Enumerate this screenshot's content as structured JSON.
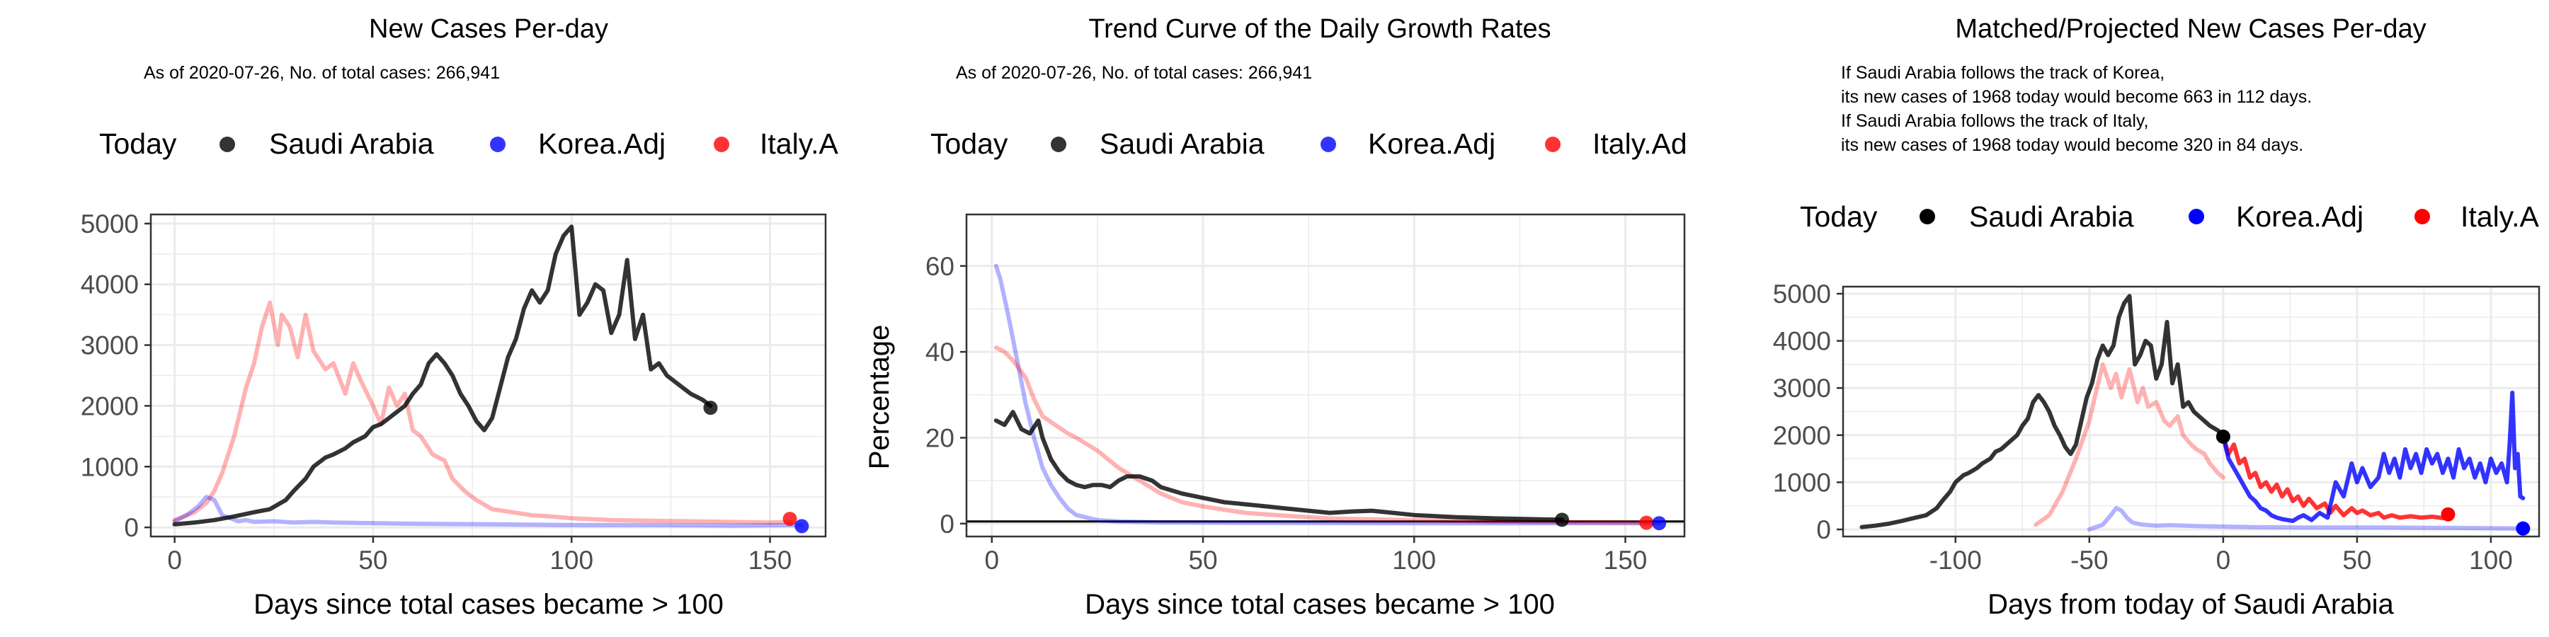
{
  "colors": {
    "saudi": "#000000",
    "korea": "#0000ff",
    "italy": "#ff0000",
    "grid": "#ebebeb",
    "axis": "#333333"
  },
  "chart_data": [
    {
      "type": "line",
      "title": "New Cases Per-day",
      "subtitle": "As of 2020-07-26, No. of total cases: 266,941",
      "legend": {
        "position": "top",
        "today_label": "Today",
        "entries": [
          "Saudi Arabia",
          "Korea.Adj",
          "Italy.A"
        ]
      },
      "xlabel": "Days since total cases became > 100",
      "ylabel": "",
      "xlim": [
        -6,
        164
      ],
      "ylim": [
        -150,
        5150
      ],
      "xticks": [
        0,
        50,
        100,
        150
      ],
      "yticks": [
        0,
        1000,
        2000,
        3000,
        4000,
        5000
      ],
      "grid": true,
      "series": [
        {
          "name": "Italy.A",
          "color": "#ff0000",
          "opacity": 0.3,
          "x": [
            0,
            5,
            8,
            10,
            12,
            15,
            18,
            20,
            22,
            24,
            26,
            27,
            29,
            31,
            33,
            35,
            38,
            40,
            43,
            45,
            47,
            50,
            52,
            54,
            56,
            58,
            60,
            62,
            65,
            68,
            70,
            73,
            76,
            80,
            85,
            90,
            95,
            100,
            110,
            120,
            130,
            140,
            150,
            155
          ],
          "y": [
            120,
            250,
            400,
            600,
            900,
            1500,
            2300,
            2700,
            3300,
            3700,
            3000,
            3500,
            3300,
            2800,
            3500,
            2900,
            2600,
            2700,
            2200,
            2700,
            2400,
            2000,
            1700,
            2300,
            2000,
            2200,
            1600,
            1500,
            1200,
            1100,
            800,
            600,
            450,
            300,
            250,
            200,
            180,
            150,
            120,
            110,
            100,
            90,
            80,
            90
          ]
        },
        {
          "name": "Korea.Adj",
          "color": "#0000ff",
          "opacity": 0.3,
          "x": [
            0,
            3,
            6,
            8,
            10,
            12,
            14,
            16,
            18,
            20,
            25,
            30,
            35,
            40,
            50,
            60,
            80,
            100,
            120,
            140,
            158
          ],
          "y": [
            100,
            200,
            350,
            500,
            450,
            200,
            150,
            100,
            120,
            90,
            100,
            80,
            90,
            80,
            70,
            60,
            50,
            40,
            40,
            30,
            40
          ]
        },
        {
          "name": "Saudi Arabia",
          "color": "#000000",
          "opacity": 0.8,
          "x": [
            0,
            5,
            10,
            15,
            20,
            24,
            28,
            30,
            33,
            35,
            38,
            40,
            43,
            45,
            48,
            50,
            52,
            54,
            56,
            58,
            60,
            62,
            64,
            66,
            68,
            70,
            72,
            74,
            76,
            78,
            80,
            82,
            84,
            86,
            88,
            90,
            92,
            94,
            96,
            98,
            100,
            102,
            104,
            106,
            108,
            110,
            112,
            114,
            116,
            118,
            120,
            122,
            124,
            126,
            128,
            130,
            133,
            135
          ],
          "y": [
            50,
            80,
            120,
            180,
            250,
            300,
            450,
            600,
            800,
            1000,
            1150,
            1200,
            1300,
            1400,
            1500,
            1650,
            1700,
            1800,
            1900,
            2000,
            2200,
            2350,
            2700,
            2850,
            2700,
            2500,
            2200,
            2000,
            1750,
            1600,
            1800,
            2300,
            2800,
            3100,
            3600,
            3900,
            3700,
            3900,
            4500,
            4800,
            4950,
            3500,
            3700,
            4000,
            3900,
            3200,
            3500,
            4400,
            3100,
            3500,
            2600,
            2700,
            2500,
            2400,
            2300,
            2200,
            2100,
            2000
          ]
        }
      ],
      "today_points": [
        {
          "series": "Saudi Arabia",
          "x": 135,
          "y": 1968
        },
        {
          "series": "Italy.A",
          "x": 155,
          "y": 140
        },
        {
          "series": "Korea.Adj",
          "x": 158,
          "y": 20
        }
      ]
    },
    {
      "type": "line",
      "title": "Trend Curve of the Daily Growth Rates",
      "subtitle": "As of 2020-07-26, No. of total cases: 266,941",
      "legend": {
        "position": "top",
        "today_label": "Today",
        "entries": [
          "Saudi Arabia",
          "Korea.Adj",
          "Italy.Ad"
        ]
      },
      "xlabel": "Days since total cases became > 100",
      "ylabel": "Percentage",
      "xlim": [
        -6,
        164
      ],
      "ylim": [
        -3,
        72
      ],
      "xticks": [
        0,
        50,
        100,
        150
      ],
      "yticks": [
        0,
        20,
        40,
        60
      ],
      "grid": true,
      "hline": 0.5,
      "series": [
        {
          "name": "Korea.Adj",
          "color": "#0000ff",
          "opacity": 0.3,
          "x": [
            1,
            2,
            4,
            6,
            8,
            10,
            12,
            14,
            16,
            18,
            20,
            25,
            30,
            40,
            60,
            100,
            158
          ],
          "y": [
            60,
            57,
            48,
            38,
            28,
            20,
            13,
            9,
            6,
            3.5,
            2,
            0.8,
            0.5,
            0.3,
            0.2,
            0.1,
            0.1
          ]
        },
        {
          "name": "Italy.Ad",
          "color": "#ff0000",
          "opacity": 0.3,
          "x": [
            1,
            3,
            5,
            8,
            10,
            12,
            15,
            18,
            20,
            25,
            30,
            35,
            40,
            45,
            50,
            60,
            70,
            80,
            100,
            120,
            155
          ],
          "y": [
            41,
            40,
            38,
            34,
            29,
            25,
            23,
            21,
            20,
            17,
            13,
            10,
            7,
            5,
            4,
            2.5,
            1.8,
            1.2,
            0.8,
            0.5,
            0.2
          ]
        },
        {
          "name": "Saudi Arabia",
          "color": "#000000",
          "opacity": 0.8,
          "x": [
            1,
            3,
            5,
            7,
            9,
            11,
            12,
            14,
            16,
            18,
            20,
            22,
            24,
            26,
            28,
            30,
            32,
            35,
            38,
            40,
            45,
            50,
            55,
            60,
            65,
            70,
            75,
            80,
            85,
            90,
            95,
            100,
            110,
            120,
            130,
            135
          ],
          "y": [
            24,
            23,
            26,
            22,
            21,
            24,
            20,
            15,
            12,
            10,
            9,
            8.5,
            9,
            9,
            8.5,
            10,
            11,
            11,
            10,
            8.5,
            7,
            6,
            5,
            4.5,
            4,
            3.5,
            3,
            2.5,
            2.8,
            3,
            2.5,
            2,
            1.5,
            1.2,
            1,
            0.9
          ]
        }
      ],
      "today_points": [
        {
          "series": "Saudi Arabia",
          "x": 135,
          "y": 0.9
        },
        {
          "series": "Italy.Ad",
          "x": 155,
          "y": 0.2
        },
        {
          "series": "Korea.Adj",
          "x": 158,
          "y": 0.1
        }
      ]
    },
    {
      "type": "line",
      "title": "Matched/Projected New Cases Per-day",
      "annotations": [
        "If Saudi Arabia follows the track of Korea,",
        "its new cases of 1968 today would become 663 in 112 days.",
        "If Saudi Arabia follows the track of Italy,",
        "its new cases of 1968 today would become 320 in 84 days."
      ],
      "legend": {
        "position": "top",
        "today_label": "Today",
        "entries": [
          "Saudi Arabia",
          "Korea.Adj",
          "Italy.A"
        ]
      },
      "xlabel": "Days from today of Saudi Arabia",
      "ylabel": "",
      "xlim": [
        -142,
        118
      ],
      "ylim": [
        -150,
        5150
      ],
      "xticks": [
        -100,
        -50,
        0,
        50,
        100
      ],
      "yticks": [
        0,
        1000,
        2000,
        3000,
        4000,
        5000
      ],
      "grid": true,
      "series": [
        {
          "name": "Italy.A (matched past)",
          "color": "#ff0000",
          "opacity": 0.3,
          "x": [
            -70,
            -65,
            -60,
            -55,
            -50,
            -48,
            -45,
            -42,
            -40,
            -38,
            -35,
            -32,
            -30,
            -28,
            -25,
            -22,
            -20,
            -17,
            -15,
            -12,
            -10,
            -7,
            -5,
            -2,
            0
          ],
          "y": [
            100,
            300,
            800,
            1500,
            2300,
            2800,
            3500,
            3000,
            3300,
            2800,
            3400,
            2700,
            3000,
            2600,
            2700,
            2300,
            2200,
            2400,
            2000,
            1800,
            1700,
            1600,
            1400,
            1200,
            1100
          ]
        },
        {
          "name": "Korea.Adj (matched past)",
          "color": "#0000ff",
          "opacity": 0.3,
          "x": [
            -50,
            -45,
            -42,
            -40,
            -38,
            -36,
            -34,
            -32,
            -30,
            -25,
            -20,
            -10,
            0,
            10,
            30,
            60,
            90,
            112
          ],
          "y": [
            0,
            100,
            300,
            450,
            400,
            250,
            150,
            120,
            100,
            80,
            90,
            70,
            60,
            50,
            40,
            40,
            30,
            20
          ]
        },
        {
          "name": "Saudi Arabia",
          "color": "#000000",
          "opacity": 0.8,
          "x": [
            -135,
            -130,
            -125,
            -120,
            -115,
            -111,
            -107,
            -105,
            -102,
            -100,
            -97,
            -95,
            -92,
            -90,
            -87,
            -85,
            -83,
            -81,
            -79,
            -77,
            -75,
            -73,
            -71,
            -69,
            -67,
            -65,
            -63,
            -61,
            -59,
            -57,
            -55,
            -53,
            -51,
            -49,
            -47,
            -45,
            -43,
            -41,
            -39,
            -37,
            -35,
            -33,
            -31,
            -29,
            -27,
            -25,
            -23,
            -21,
            -19,
            -17,
            -15,
            -13,
            -11,
            -9,
            -7,
            -5,
            -2,
            0
          ],
          "y": [
            50,
            80,
            120,
            180,
            250,
            300,
            450,
            600,
            800,
            1000,
            1150,
            1200,
            1300,
            1400,
            1500,
            1650,
            1700,
            1800,
            1900,
            2000,
            2200,
            2350,
            2700,
            2850,
            2700,
            2500,
            2200,
            2000,
            1750,
            1600,
            1800,
            2300,
            2800,
            3100,
            3600,
            3900,
            3700,
            3900,
            4500,
            4800,
            4950,
            3500,
            3700,
            4000,
            3900,
            3200,
            3500,
            4400,
            3100,
            3500,
            2600,
            2700,
            2500,
            2400,
            2300,
            2200,
            2100,
            2000
          ]
        },
        {
          "name": "Italy.A (projected)",
          "color": "#ff0000",
          "opacity": 0.8,
          "x": [
            0,
            2,
            4,
            6,
            8,
            10,
            12,
            14,
            16,
            18,
            20,
            22,
            24,
            26,
            28,
            30,
            32,
            35,
            38,
            40,
            42,
            45,
            48,
            50,
            52,
            55,
            58,
            60,
            63,
            66,
            70,
            74,
            78,
            82,
            84
          ],
          "y": [
            1968,
            1600,
            1800,
            1400,
            1500,
            1100,
            1200,
            900,
            1000,
            800,
            950,
            700,
            850,
            600,
            700,
            500,
            650,
            450,
            550,
            350,
            500,
            300,
            450,
            350,
            400,
            300,
            350,
            250,
            300,
            250,
            280,
            250,
            270,
            240,
            320
          ]
        },
        {
          "name": "Korea.Adj (projected)",
          "color": "#0000ff",
          "opacity": 0.8,
          "x": [
            0,
            2,
            4,
            6,
            8,
            10,
            12,
            14,
            16,
            18,
            20,
            22,
            24,
            26,
            28,
            30,
            33,
            36,
            39,
            42,
            45,
            48,
            50,
            52,
            55,
            58,
            60,
            62,
            64,
            66,
            68,
            70,
            72,
            74,
            76,
            78,
            80,
            82,
            84,
            86,
            88,
            90,
            92,
            94,
            96,
            98,
            100,
            102,
            104,
            106,
            107,
            108,
            109,
            110,
            111,
            112
          ],
          "y": [
            1968,
            1500,
            1300,
            1100,
            900,
            700,
            600,
            450,
            400,
            300,
            250,
            220,
            200,
            180,
            250,
            300,
            200,
            350,
            250,
            1000,
            700,
            1400,
            1000,
            1300,
            900,
            1100,
            1600,
            1200,
            1500,
            1100,
            1700,
            1300,
            1600,
            1200,
            1700,
            1400,
            1600,
            1200,
            1500,
            1100,
            1700,
            1300,
            1500,
            1100,
            1400,
            1000,
            1500,
            1200,
            1400,
            1000,
            1800,
            2900,
            1300,
            1600,
            700,
            663
          ]
        }
      ],
      "today_points": [
        {
          "series": "Saudi Arabia",
          "x": 0,
          "y": 1968
        },
        {
          "series": "Italy.A",
          "x": 84,
          "y": 320
        },
        {
          "series": "Korea.Adj",
          "x": 112,
          "y": 20
        }
      ]
    }
  ]
}
